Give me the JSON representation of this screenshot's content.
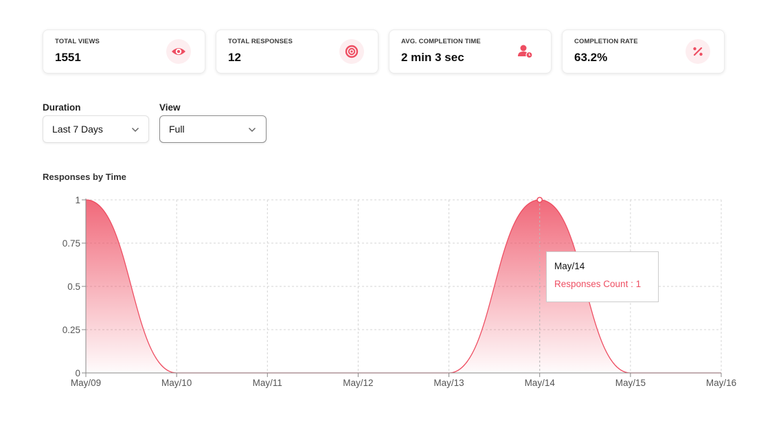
{
  "stats": [
    {
      "label": "TOTAL VIEWS",
      "value": "1551",
      "icon": "eye-icon"
    },
    {
      "label": "TOTAL RESPONSES",
      "value": "12",
      "icon": "target-icon"
    },
    {
      "label": "AVG. COMPLETION TIME",
      "value": "2 min 3 sec",
      "icon": "user-clock-icon"
    },
    {
      "label": "COMPLETION RATE",
      "value": "63.2%",
      "icon": "percent-icon"
    }
  ],
  "filters": {
    "duration": {
      "label": "Duration",
      "value": "Last 7 Days"
    },
    "view": {
      "label": "View",
      "value": "Full"
    }
  },
  "colors": {
    "accent": "#ee4e62",
    "icon_bg": "#fdeef0"
  },
  "chart_title": "Responses by Time",
  "chart_data": {
    "type": "area",
    "title": "Responses by Time",
    "x": [
      "May/09",
      "May/10",
      "May/11",
      "May/12",
      "May/13",
      "May/14",
      "May/15",
      "May/16"
    ],
    "series": [
      {
        "name": "Responses Count",
        "values": [
          1,
          0,
          0,
          0,
          0,
          1,
          0,
          0
        ]
      }
    ],
    "y_ticks": [
      "0",
      "0.25",
      "0.5",
      "0.75",
      "1"
    ],
    "ylim": [
      0,
      1
    ],
    "grid": true
  },
  "tooltip": {
    "date": "May/14",
    "text": "Responses Count : 1"
  }
}
